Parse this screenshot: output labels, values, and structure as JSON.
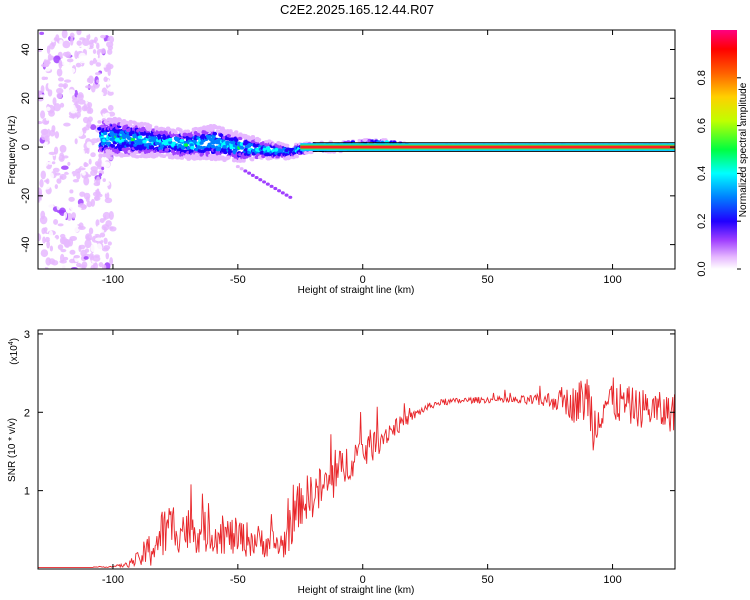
{
  "title": "C2E2.2025.165.12.44.R07",
  "chart_data": [
    {
      "type": "heatmap",
      "title": "C2E2.2025.165.12.44.R07",
      "xlabel": "Height of straight line (km)",
      "ylabel": "Frequency (Hz)",
      "xlim": [
        -130,
        125
      ],
      "ylim": [
        -50,
        48
      ],
      "x_ticks": [
        "-100",
        "-50",
        "0",
        "50",
        "100"
      ],
      "y_ticks": [
        "-40",
        "-20",
        "0",
        "20",
        "40"
      ],
      "colorbar": {
        "label": "Normalized spectral amplitude",
        "range": [
          0.0,
          1.0
        ],
        "ticks": [
          "0.0",
          "0.2",
          "0.4",
          "0.6",
          "0.8"
        ],
        "colormap": [
          "#ffffff",
          "#e0a8ff",
          "#8000ff",
          "#0000ff",
          "#00ffff",
          "#00ff00",
          "#ffff00",
          "#ff8000",
          "#ff0000",
          "#ff0080"
        ]
      },
      "ridge": {
        "description_points_x": [
          -100,
          -90,
          -80,
          -70,
          -60,
          -50,
          -40,
          -30,
          -20,
          -10,
          0,
          10,
          20,
          50,
          100,
          125
        ],
        "peak_freq_hz": [
          4,
          3,
          2,
          1,
          2,
          0,
          -1,
          -2,
          0,
          0,
          1,
          1,
          0,
          0,
          0,
          0
        ],
        "spread_hz": [
          8,
          7,
          6,
          6,
          7,
          6,
          4,
          3,
          2,
          2,
          2,
          2,
          1,
          1,
          1,
          1
        ]
      }
    },
    {
      "type": "line",
      "xlabel": "Height of straight line (km)",
      "ylabel": "SNR (10 * v/v)",
      "y_multiplier": "(x10",
      "y_multiplier_exp": "4",
      "xlim": [
        -130,
        125
      ],
      "ylim": [
        0,
        3.05
      ],
      "x_ticks": [
        "-100",
        "-50",
        "0",
        "50",
        "100"
      ],
      "y_ticks": [
        "1",
        "2",
        "3"
      ],
      "series": [
        {
          "color": "#e8262a",
          "x": [
            -130,
            -110,
            -100,
            -95,
            -90,
            -85,
            -80,
            -75,
            -70,
            -60,
            -50,
            -40,
            -32,
            -28,
            -25,
            -20,
            -15,
            -10,
            -5,
            0,
            5,
            10,
            15,
            20,
            25,
            30,
            40,
            50,
            60,
            70,
            80,
            85,
            90,
            93,
            95,
            100,
            105,
            110,
            115,
            120,
            125
          ],
          "y": [
            0.02,
            0.02,
            0.03,
            0.05,
            0.12,
            0.25,
            0.45,
            0.55,
            0.5,
            0.45,
            0.4,
            0.35,
            0.3,
            0.6,
            0.85,
            0.95,
            1.05,
            1.2,
            1.4,
            1.5,
            1.6,
            1.75,
            1.85,
            1.95,
            2.05,
            2.12,
            2.15,
            2.16,
            2.15,
            2.15,
            2.15,
            2.1,
            2.2,
            1.8,
            2.1,
            2.15,
            2.1,
            2.05,
            2.05,
            2.0,
            2.0
          ],
          "noise": [
            0,
            0,
            0.01,
            0.03,
            0.1,
            0.25,
            0.35,
            0.35,
            0.3,
            0.25,
            0.25,
            0.2,
            0.2,
            0.3,
            0.3,
            0.3,
            0.3,
            0.3,
            0.25,
            0.25,
            0.2,
            0.15,
            0.1,
            0.06,
            0.05,
            0.04,
            0.04,
            0.04,
            0.05,
            0.08,
            0.15,
            0.25,
            0.35,
            0.4,
            0.35,
            0.3,
            0.25,
            0.25,
            0.25,
            0.25,
            0.25
          ]
        }
      ]
    }
  ]
}
